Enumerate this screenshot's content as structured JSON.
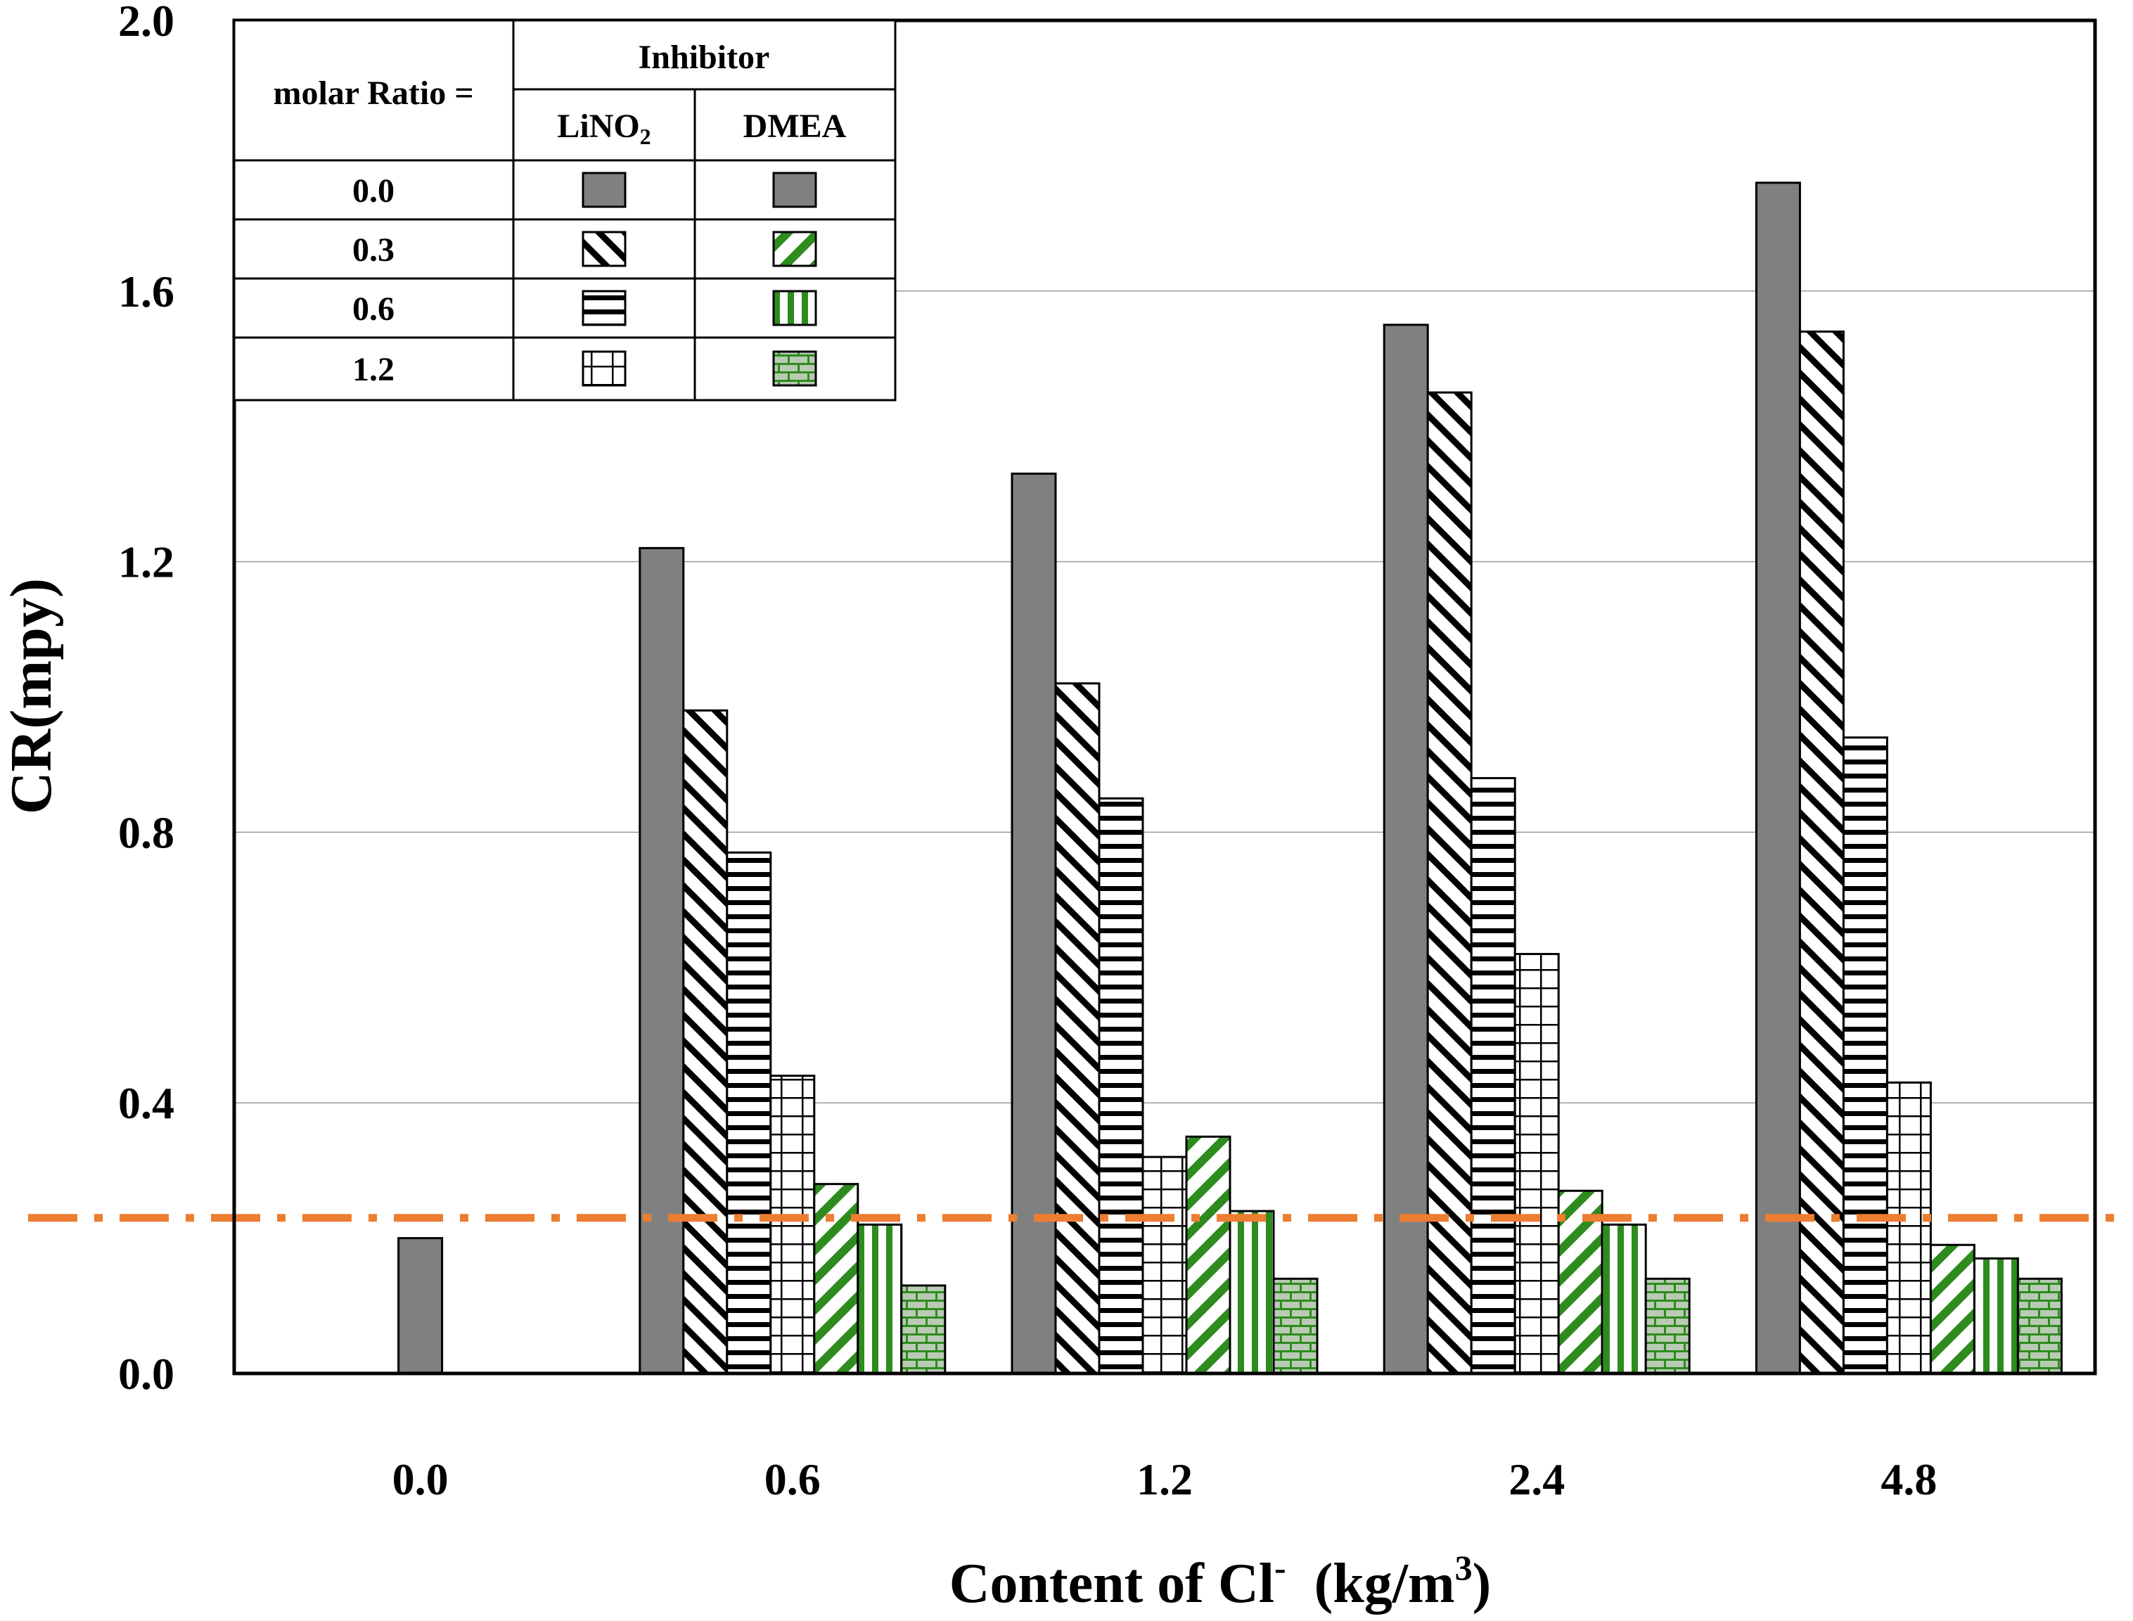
{
  "chart_data": {
    "type": "bar",
    "title": "",
    "xlabel": "Content of Cl",
    "xlabel_sup": "-",
    "xlabel_unit_pre": "  (kg/m",
    "xlabel_unit_sup": "3",
    "xlabel_unit_post": ")",
    "ylabel": "CR(mpy)",
    "ylim": [
      0,
      2.0
    ],
    "yticks": [
      "0.0",
      "0.4",
      "0.8",
      "1.2",
      "1.6",
      "2.0"
    ],
    "ytick_values": [
      0,
      0.4,
      0.8,
      1.2,
      1.6,
      2.0
    ],
    "grid": "horizontal",
    "categories": [
      "0.0",
      "0.6",
      "1.2",
      "2.4",
      "4.8"
    ],
    "series": [
      {
        "name": "LiNO2 0.0",
        "inhibitor": "LiNO2",
        "ratio": "0.0",
        "pattern": "solid-gray",
        "values": [
          0.2,
          1.22,
          1.33,
          1.55,
          1.76
        ]
      },
      {
        "name": "LiNO2 0.3",
        "inhibitor": "LiNO2",
        "ratio": "0.3",
        "pattern": "diag-black",
        "values": [
          null,
          0.98,
          1.02,
          1.45,
          1.54
        ]
      },
      {
        "name": "LiNO2 0.6",
        "inhibitor": "LiNO2",
        "ratio": "0.6",
        "pattern": "hlines-black",
        "values": [
          null,
          0.77,
          0.85,
          0.88,
          0.94
        ]
      },
      {
        "name": "LiNO2 1.2",
        "inhibitor": "LiNO2",
        "ratio": "1.2",
        "pattern": "grid-black",
        "values": [
          null,
          0.44,
          0.32,
          0.62,
          0.43
        ]
      },
      {
        "name": "DMEA 0.3",
        "inhibitor": "DMEA",
        "ratio": "0.3",
        "pattern": "diag-green",
        "values": [
          null,
          0.28,
          0.35,
          0.27,
          0.19
        ]
      },
      {
        "name": "DMEA 0.6",
        "inhibitor": "DMEA",
        "ratio": "0.6",
        "pattern": "vlines-green",
        "values": [
          null,
          0.22,
          0.24,
          0.22,
          0.17
        ]
      },
      {
        "name": "DMEA 1.2",
        "inhibitor": "DMEA",
        "ratio": "1.2",
        "pattern": "brick-green",
        "values": [
          null,
          0.13,
          0.14,
          0.14,
          0.14
        ]
      }
    ],
    "reference_line": {
      "value": 0.23,
      "color": "#ED7D31",
      "style": "dash-dot"
    },
    "legend": {
      "placement": "top-left",
      "header_left": "molar Ratio =",
      "header_top": "Inhibitor",
      "col_labels": [
        {
          "main": "LiNO",
          "sub": "2"
        },
        {
          "main": "DMEA",
          "sub": ""
        }
      ],
      "rows": [
        {
          "ratio": "0.0",
          "patterns": [
            "solid-gray",
            "solid-gray"
          ]
        },
        {
          "ratio": "0.3",
          "patterns": [
            "diag-black",
            "diag-green-rev"
          ]
        },
        {
          "ratio": "0.6",
          "patterns": [
            "hlines-black",
            "vlines-green"
          ]
        },
        {
          "ratio": "1.2",
          "patterns": [
            "grid-black",
            "brick-green"
          ]
        }
      ]
    }
  },
  "colors": {
    "bar_gray": "#808080",
    "green": "#2E8B1E",
    "brick_fill": "#B9CBB4",
    "reference": "#ED7D31",
    "grid": "#9A9A9A"
  }
}
